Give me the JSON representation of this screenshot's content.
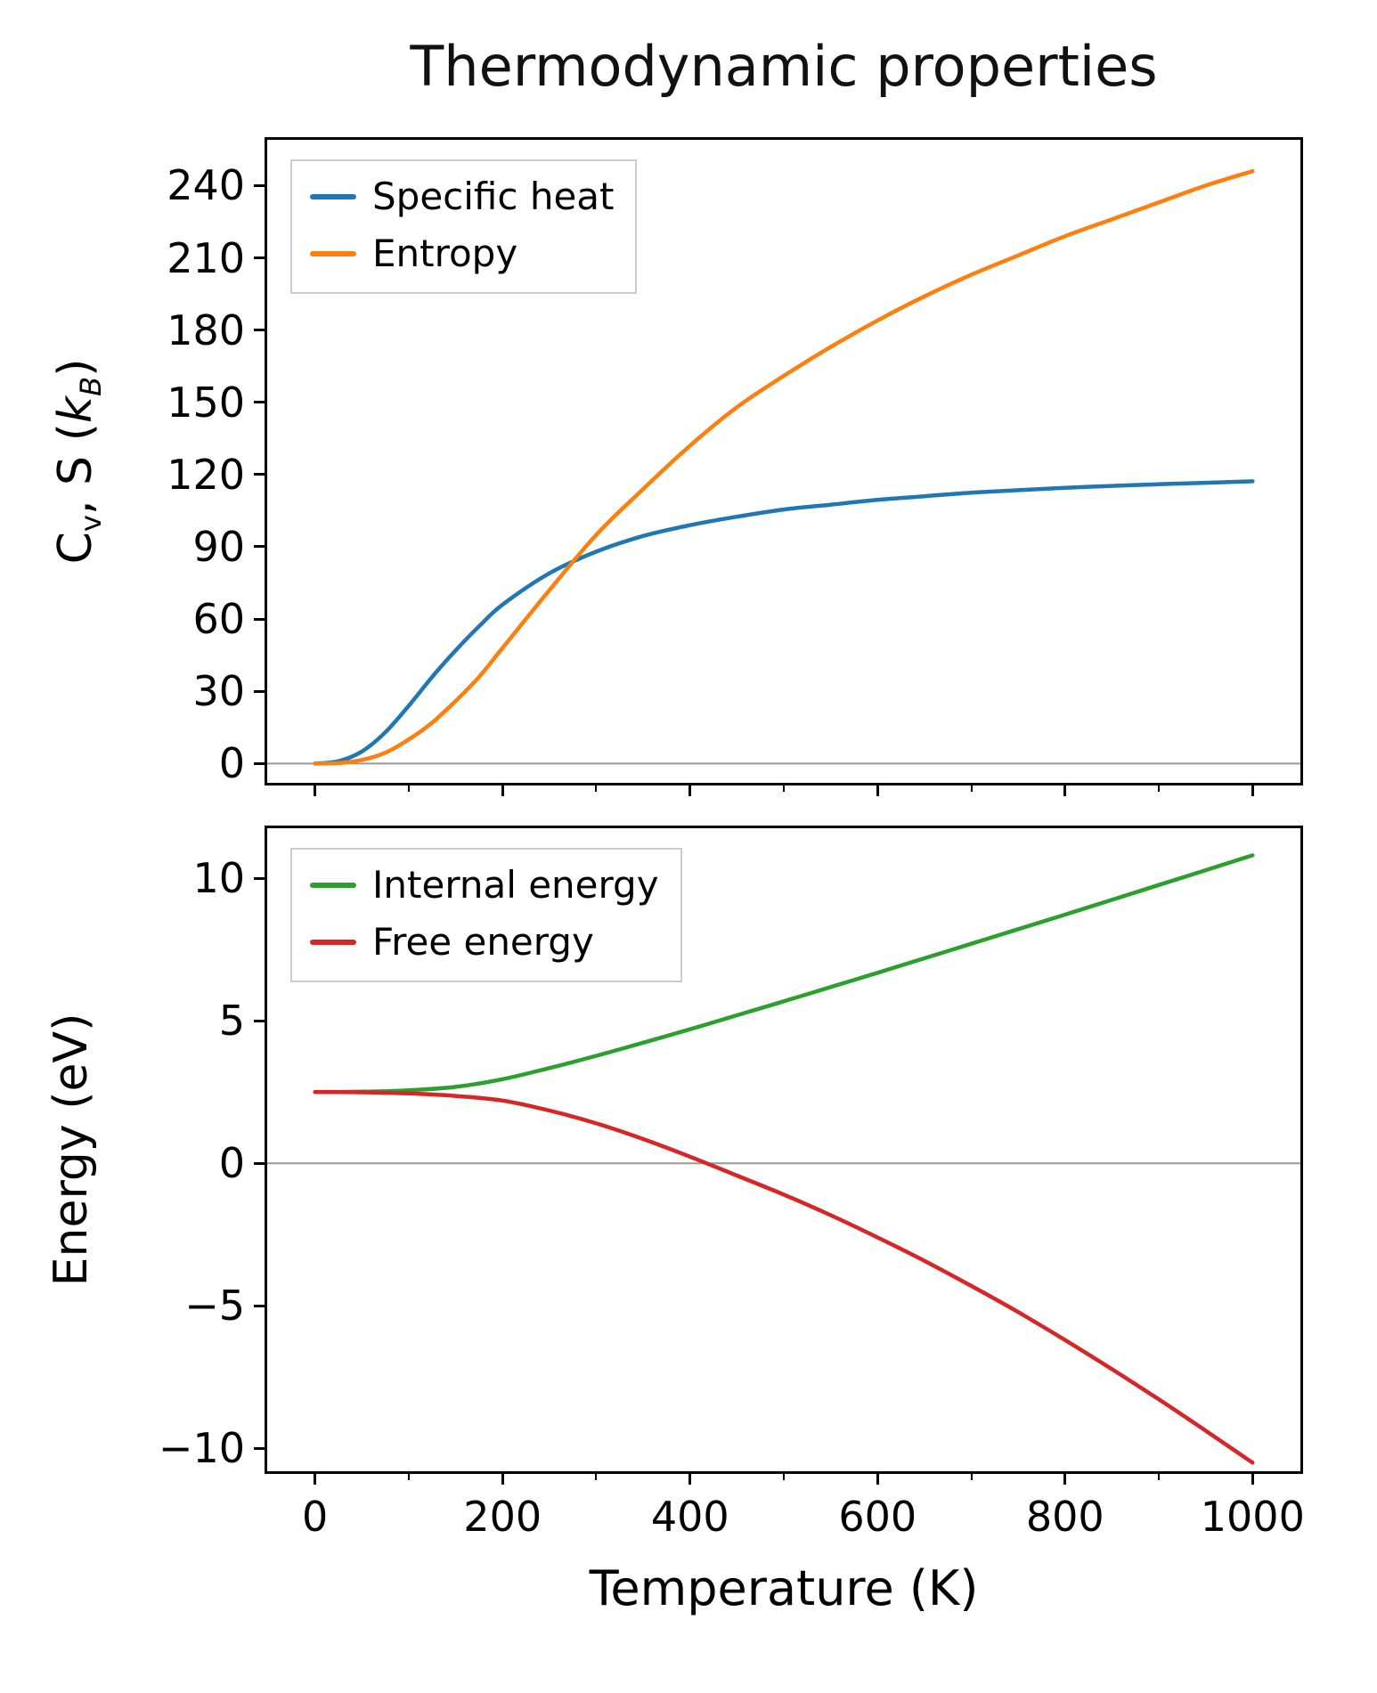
{
  "title": "Thermodynamic properties",
  "chart_data": [
    {
      "type": "line",
      "title": "",
      "ylabel": "Cv, S (kB)",
      "ylabel_parts": [
        "C",
        "v",
        ", S (",
        "k",
        "B",
        ")"
      ],
      "xlabel": "",
      "xlim": [
        -51,
        1051
      ],
      "ylim": [
        -8,
        259
      ],
      "xticks": [
        0,
        200,
        400,
        600,
        800,
        1000
      ],
      "xticks_minor": [
        100,
        300,
        500,
        700,
        900
      ],
      "yticks": [
        0,
        30,
        60,
        90,
        120,
        150,
        180,
        210,
        240
      ],
      "xtick_labels_visible": false,
      "zero_line": true,
      "legend_position": "upper left",
      "x": [
        0,
        25,
        50,
        75,
        100,
        125,
        150,
        175,
        200,
        250,
        300,
        350,
        400,
        450,
        500,
        550,
        600,
        650,
        700,
        750,
        800,
        850,
        900,
        950,
        1000
      ],
      "series": [
        {
          "name": "Specific heat",
          "color": "#1f77b4",
          "values": [
            0,
            1,
            5,
            13,
            24,
            36,
            47,
            57,
            66,
            79,
            88,
            94.5,
            99,
            102.5,
            105.5,
            107.5,
            109.5,
            111,
            112.5,
            113.5,
            114.5,
            115.3,
            116,
            116.6,
            117.2
          ]
        },
        {
          "name": "Entropy",
          "color": "#ff7f0e",
          "values": [
            0,
            0.2,
            1.5,
            4.5,
            10,
            17,
            26,
            36,
            48,
            72,
            95,
            114,
            132,
            148,
            161,
            173,
            184,
            194,
            203,
            211,
            219,
            226,
            233,
            240,
            246
          ]
        }
      ]
    },
    {
      "type": "line",
      "title": "",
      "ylabel": "Energy (eV)",
      "xlabel": "Temperature (K)",
      "xlim": [
        -51,
        1051
      ],
      "ylim": [
        -10.8,
        11.75
      ],
      "xticks": [
        0,
        200,
        400,
        600,
        800,
        1000
      ],
      "xticks_minor": [
        100,
        300,
        500,
        700,
        900
      ],
      "yticks": [
        -10,
        -5,
        0,
        5,
        10
      ],
      "xtick_labels_visible": true,
      "zero_line": true,
      "legend_position": "upper left",
      "x": [
        0,
        50,
        100,
        150,
        200,
        250,
        300,
        350,
        400,
        450,
        500,
        550,
        600,
        650,
        700,
        750,
        800,
        850,
        900,
        950,
        1000
      ],
      "series": [
        {
          "name": "Internal energy",
          "color": "#2ca02c",
          "values": [
            2.5,
            2.51,
            2.56,
            2.68,
            2.95,
            3.34,
            3.77,
            4.23,
            4.7,
            5.19,
            5.68,
            6.18,
            6.68,
            7.19,
            7.7,
            8.21,
            8.72,
            9.24,
            9.76,
            10.28,
            10.8
          ]
        },
        {
          "name": "Free energy",
          "color": "#d62728",
          "values": [
            2.5,
            2.49,
            2.45,
            2.36,
            2.2,
            1.85,
            1.4,
            0.85,
            0.23,
            -0.43,
            -1.1,
            -1.82,
            -2.6,
            -3.42,
            -4.3,
            -5.22,
            -6.2,
            -7.22,
            -8.28,
            -9.38,
            -10.5
          ]
        }
      ]
    }
  ]
}
